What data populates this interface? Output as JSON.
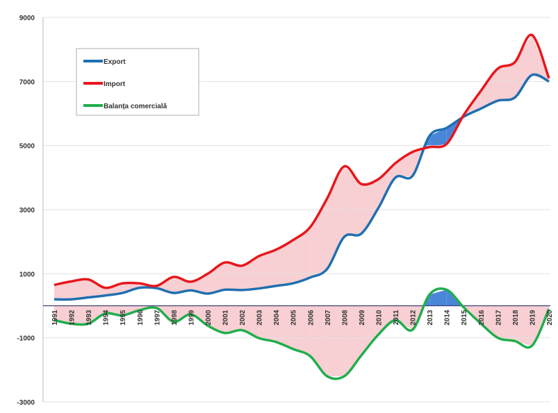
{
  "chart_data": {
    "type": "line",
    "categories": [
      "1991",
      "1992",
      "1993",
      "1994",
      "1995",
      "1996",
      "1997",
      "1998",
      "1999",
      "2000",
      "2001",
      "2002",
      "2003",
      "2004",
      "2005",
      "2006",
      "2007",
      "2008",
      "2009",
      "2010",
      "2011",
      "2012",
      "2013",
      "2014",
      "2015",
      "2016",
      "2017",
      "2018",
      "2019",
      "2020"
    ],
    "series": [
      {
        "name": "Export",
        "color": "#1f6fb0",
        "values": [
          200,
          200,
          260,
          320,
          400,
          560,
          550,
          400,
          480,
          380,
          500,
          490,
          540,
          620,
          700,
          880,
          1150,
          2150,
          2250,
          3050,
          4000,
          4050,
          5300,
          5550,
          5900,
          6150,
          6400,
          6500,
          7200,
          7000
        ]
      },
      {
        "name": "Import",
        "color": "#e8161b",
        "values": [
          650,
          760,
          820,
          560,
          700,
          700,
          620,
          900,
          750,
          1000,
          1350,
          1250,
          1550,
          1750,
          2050,
          2450,
          3350,
          4350,
          3800,
          3950,
          4450,
          4800,
          4950,
          5050,
          5950,
          6700,
          7400,
          7600,
          8450,
          7100
        ]
      },
      {
        "name": "Balanța comercială",
        "color": "#1fae4c",
        "values": [
          -450,
          -560,
          -560,
          -240,
          -300,
          -140,
          -70,
          -500,
          -270,
          -620,
          -850,
          -760,
          -1010,
          -1130,
          -1350,
          -1570,
          -2200,
          -2200,
          -1550,
          -900,
          -450,
          -750,
          350,
          500,
          -50,
          -550,
          -1000,
          -1100,
          -1250,
          -100
        ]
      }
    ],
    "fill_colors": {
      "negative": "#f8cfd3",
      "positive": "#4a86d8"
    },
    "ylim": [
      -3000,
      9000
    ],
    "yticks": [
      -3000,
      -1000,
      1000,
      3000,
      5000,
      7000,
      9000
    ],
    "grid": true,
    "legend": "top-left"
  }
}
